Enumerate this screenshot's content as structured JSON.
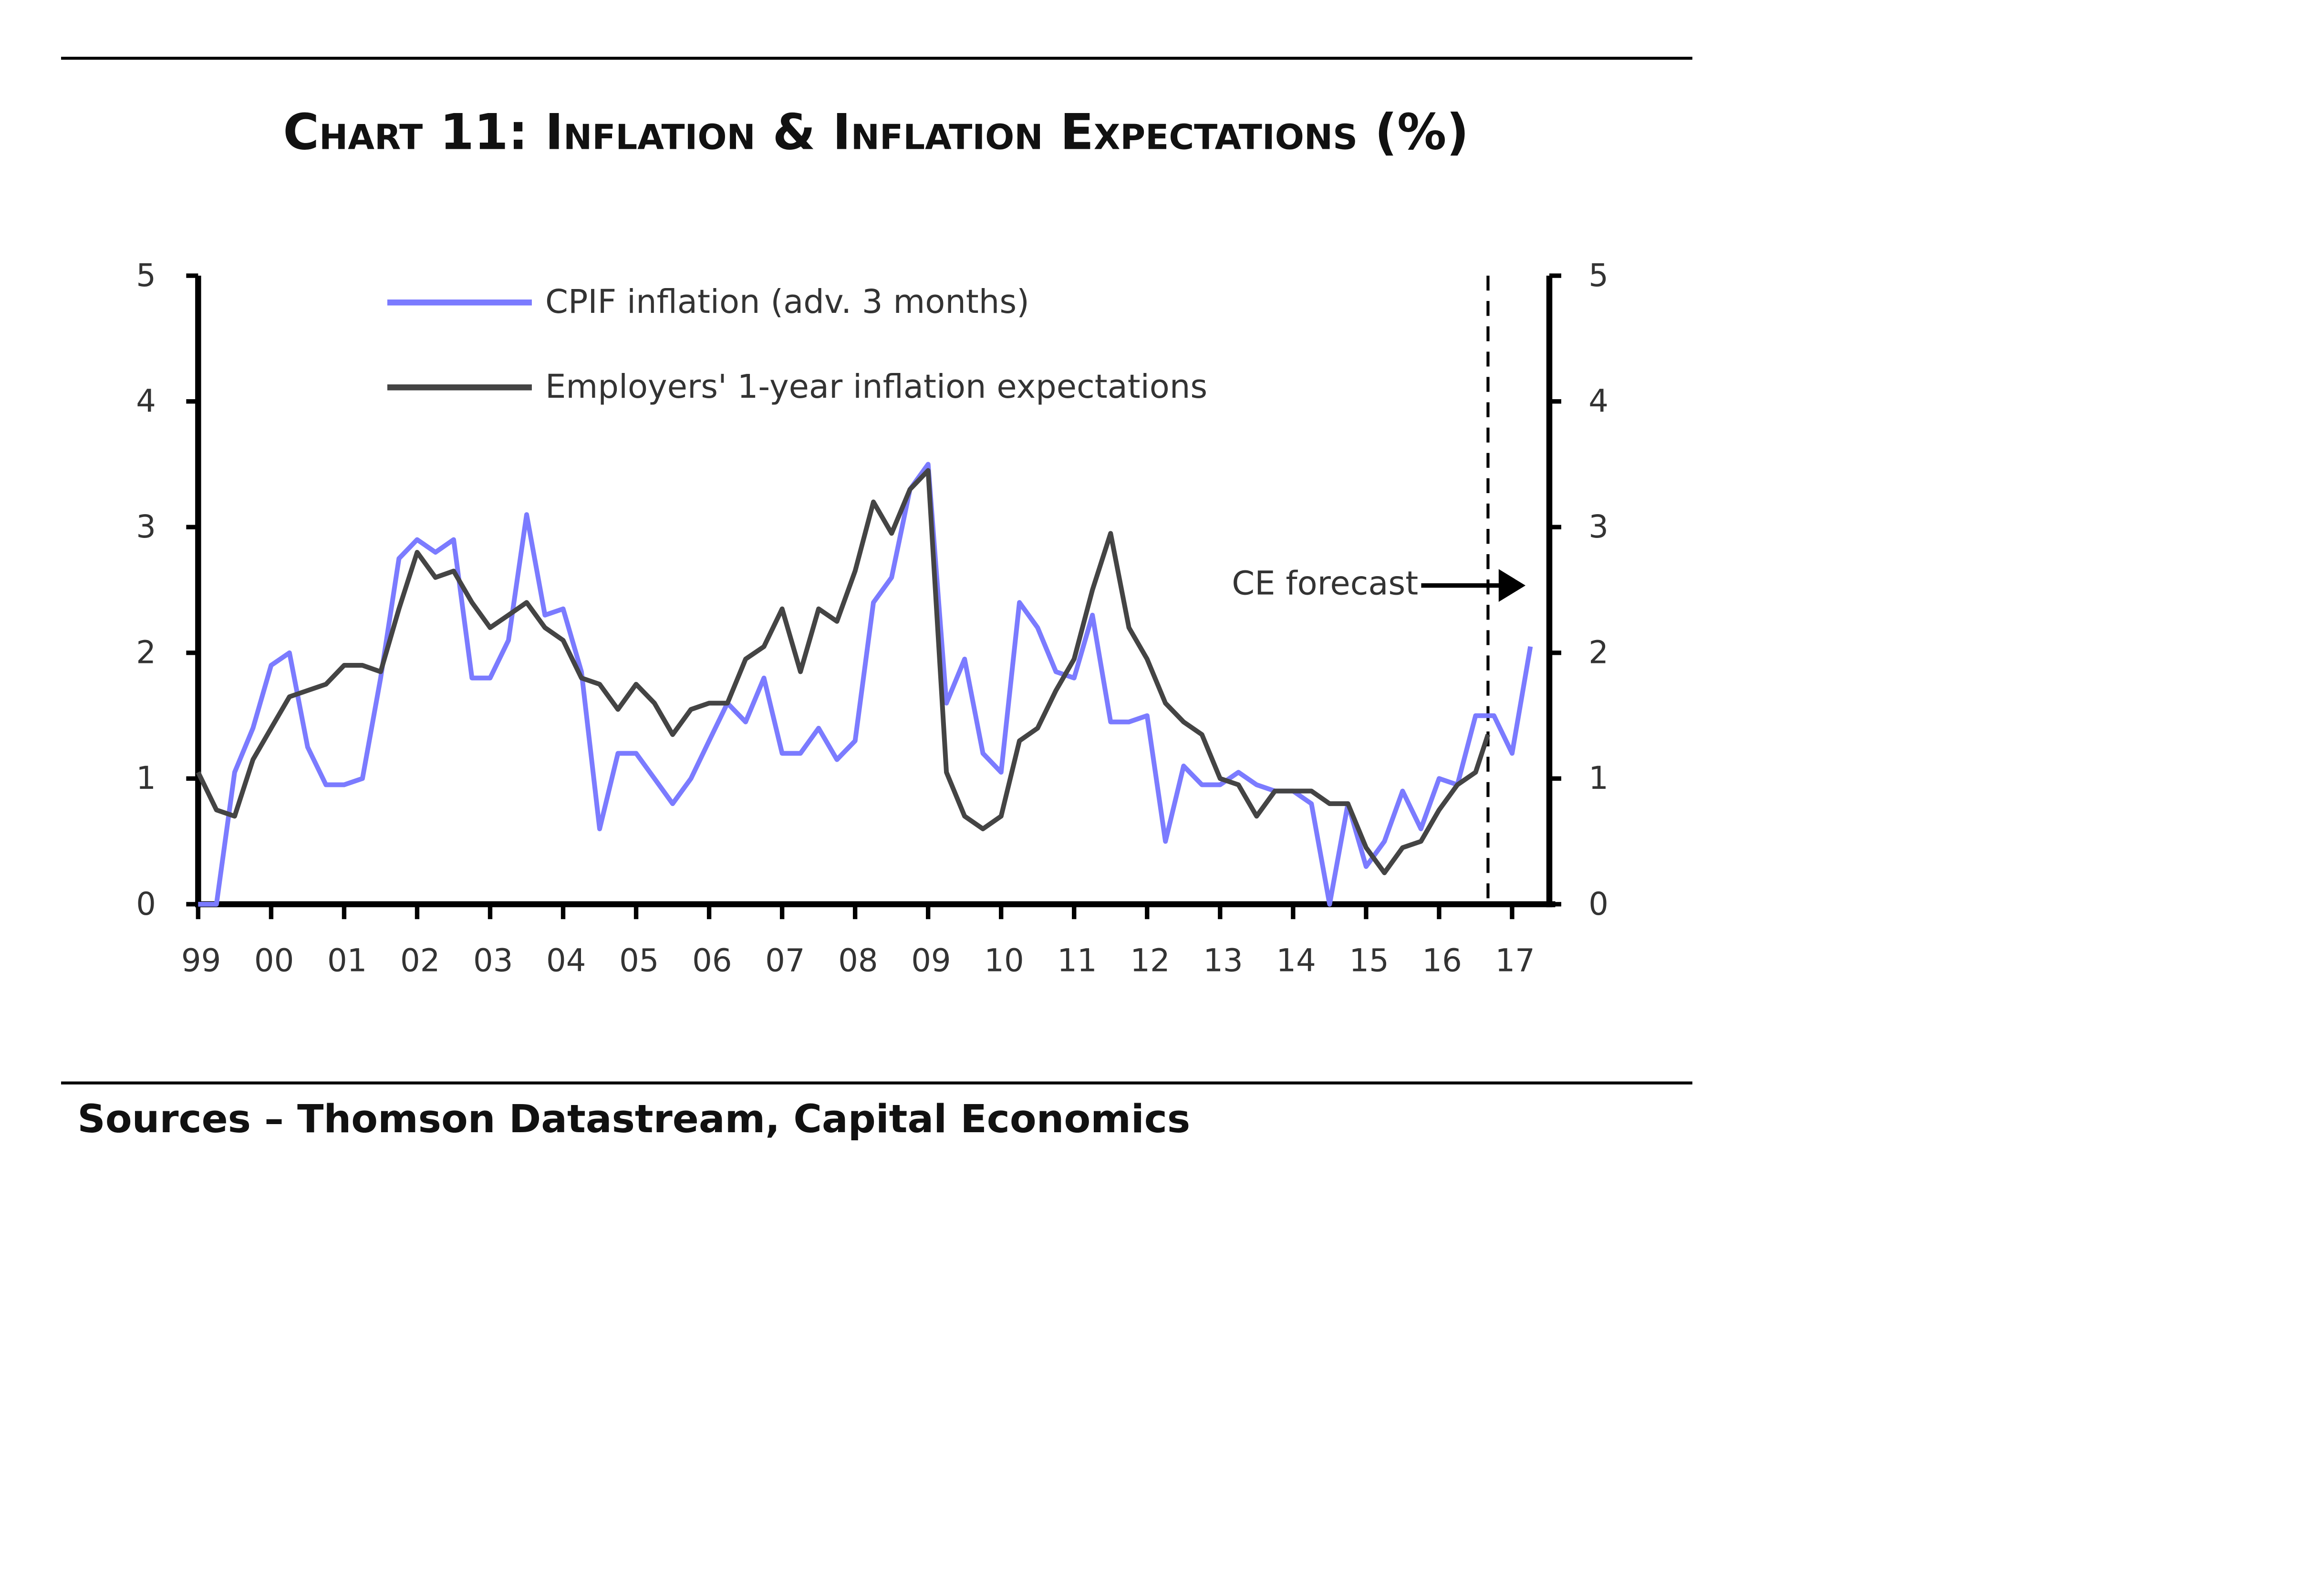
{
  "chart_data": {
    "type": "line",
    "title": "Chart 11: Inflation & Inflation Expectations (%)",
    "source": "Sources – Thomson Datastream, Capital Economics",
    "xlabel": "",
    "ylabel": "",
    "ylim": [
      0,
      5
    ],
    "y_ticks": [
      "0",
      "1",
      "2",
      "3",
      "4",
      "5"
    ],
    "y2_ticks": [
      "0",
      "1",
      "2",
      "3",
      "4",
      "5"
    ],
    "x_ticks": [
      "99",
      "00",
      "01",
      "02",
      "03",
      "04",
      "05",
      "06",
      "07",
      "08",
      "09",
      "10",
      "11",
      "12",
      "13",
      "14",
      "15",
      "16",
      "17"
    ],
    "x_tick_years": [
      1999,
      2000,
      2001,
      2002,
      2003,
      2004,
      2005,
      2006,
      2007,
      2008,
      2009,
      2010,
      2011,
      2012,
      2013,
      2014,
      2015,
      2016,
      2017
    ],
    "xlim": [
      1999,
      2017.6
    ],
    "grid": false,
    "legend_position": "top-left",
    "annotation": {
      "text": "CE forecast",
      "forecast_start": 2016.67
    },
    "series": [
      {
        "name": "CPIF inflation (adv. 3 months)",
        "color": "#7b7bff",
        "x_start": 1999.0,
        "x_step": 0.25,
        "values": [
          0,
          0,
          1.05,
          1.4,
          1.9,
          2.0,
          1.25,
          0.95,
          0.95,
          1.0,
          1.8,
          2.75,
          2.9,
          2.8,
          2.9,
          1.8,
          1.8,
          2.1,
          3.1,
          2.3,
          2.35,
          1.85,
          0.6,
          1.2,
          1.2,
          1.0,
          0.8,
          1.0,
          1.3,
          1.6,
          1.45,
          1.8,
          1.2,
          1.2,
          1.4,
          1.15,
          1.3,
          2.4,
          2.6,
          3.3,
          3.5,
          1.6,
          1.95,
          1.2,
          1.05,
          2.4,
          2.2,
          1.85,
          1.8,
          2.3,
          1.45,
          1.45,
          1.5,
          0.5,
          1.1,
          0.95,
          0.95,
          1.05,
          0.95,
          0.9,
          0.9,
          0.8,
          0.0,
          0.8,
          0.3,
          0.5,
          0.9,
          0.6,
          1.0,
          0.95,
          1.5,
          1.5,
          1.2,
          2.05
        ]
      },
      {
        "name": "Employers' 1-year inflation expectations",
        "color": "#444444",
        "x_start": 1999.0,
        "x_step": 0.25,
        "values": [
          1.05,
          0.75,
          0.7,
          1.15,
          1.4,
          1.65,
          1.7,
          1.75,
          1.9,
          1.9,
          1.85,
          2.35,
          2.8,
          2.6,
          2.65,
          2.4,
          2.2,
          2.3,
          2.4,
          2.2,
          2.1,
          1.8,
          1.75,
          1.55,
          1.75,
          1.6,
          1.35,
          1.55,
          1.6,
          1.6,
          1.95,
          2.05,
          2.35,
          1.85,
          2.35,
          2.25,
          2.65,
          3.2,
          2.95,
          3.3,
          3.45,
          1.05,
          0.7,
          0.6,
          0.7,
          1.3,
          1.4,
          1.7,
          1.95,
          2.5,
          2.95,
          2.2,
          1.95,
          1.6,
          1.45,
          1.35,
          1.0,
          0.95,
          0.7,
          0.9,
          0.9,
          0.9,
          0.8,
          0.8,
          0.45,
          0.25,
          0.45,
          0.5,
          0.75,
          0.95,
          1.05,
          1.35
        ]
      }
    ]
  }
}
